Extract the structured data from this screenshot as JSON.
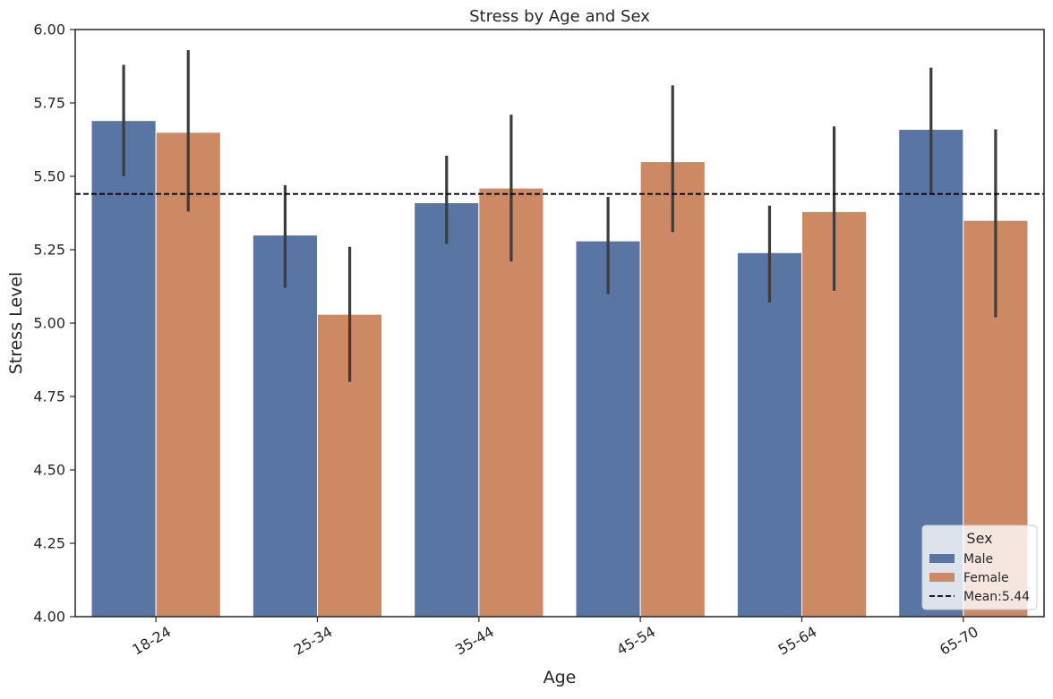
{
  "chart_data": {
    "type": "bar",
    "title": "Stress by Age and Sex",
    "xlabel": "Age",
    "ylabel": "Stress Level",
    "ylim": [
      4.0,
      6.0
    ],
    "yticks": [
      "4.00",
      "4.25",
      "4.50",
      "4.75",
      "5.00",
      "5.25",
      "5.50",
      "5.75",
      "6.00"
    ],
    "categories": [
      "18-24",
      "25-34",
      "35-44",
      "45-54",
      "55-64",
      "65-70"
    ],
    "series": [
      {
        "name": "Male",
        "color": "#5875a4",
        "values": [
          5.69,
          5.3,
          5.41,
          5.28,
          5.24,
          5.66
        ],
        "error_low": [
          5.5,
          5.12,
          5.27,
          5.1,
          5.07,
          5.44
        ],
        "error_high": [
          5.88,
          5.47,
          5.57,
          5.43,
          5.4,
          5.87
        ]
      },
      {
        "name": "Female",
        "color": "#cc8963",
        "values": [
          5.65,
          5.03,
          5.46,
          5.55,
          5.38,
          5.35
        ],
        "error_low": [
          5.38,
          4.8,
          5.21,
          5.31,
          5.11,
          5.02
        ],
        "error_high": [
          5.93,
          5.26,
          5.71,
          5.81,
          5.67,
          5.66
        ]
      }
    ],
    "mean_line": {
      "value": 5.44,
      "label": "Mean:5.44"
    },
    "legend": {
      "title": "Sex",
      "position": "lower-right"
    },
    "grid": false
  }
}
